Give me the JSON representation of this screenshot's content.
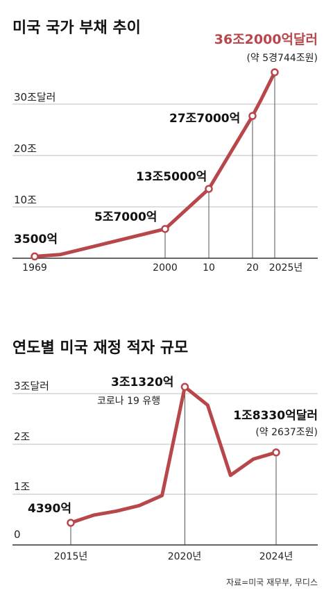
{
  "chart_data": [
    {
      "type": "line",
      "title": "미국 국가 부채 추이",
      "unit_note": "",
      "x_tick_labels": [
        "1969",
        "2000",
        "10",
        "20",
        "2025년"
      ],
      "y_tick_labels": [
        "10조",
        "20조",
        "30조달러"
      ],
      "ylim": [
        0,
        37
      ],
      "grid": true,
      "points": [
        {
          "x": 1969,
          "y": 0.35
        },
        {
          "x": 1975,
          "y": 0.7
        },
        {
          "x": 2000,
          "y": 5.7
        },
        {
          "x": 2010,
          "y": 13.5
        },
        {
          "x": 2020,
          "y": 27.7
        },
        {
          "x": 2022,
          "y": 31.0
        },
        {
          "x": 2025,
          "y": 36.2
        }
      ],
      "markers": [
        {
          "x": 1969,
          "y": 0.35,
          "label": "3500억"
        },
        {
          "x": 2000,
          "y": 5.7,
          "label": "5조7000억"
        },
        {
          "x": 2010,
          "y": 13.5,
          "label": "13조5000억"
        },
        {
          "x": 2020,
          "y": 27.7,
          "label": "27조7000억"
        },
        {
          "x": 2025,
          "y": 36.2,
          "label": "36조2000억달러",
          "sublabel": "(약 5경744조원)"
        }
      ]
    },
    {
      "type": "line",
      "title": "연도별 미국 재정 적자 규모",
      "x_tick_labels": [
        "2015년",
        "2020년",
        "2024년"
      ],
      "y_tick_labels": [
        "0",
        "1조",
        "2조",
        "3조달러"
      ],
      "ylim": [
        0,
        3.3
      ],
      "grid": true,
      "points": [
        {
          "x": 2015,
          "y": 0.439
        },
        {
          "x": 2016,
          "y": 0.59
        },
        {
          "x": 2017,
          "y": 0.67
        },
        {
          "x": 2018,
          "y": 0.78
        },
        {
          "x": 2019,
          "y": 0.98
        },
        {
          "x": 2020,
          "y": 3.132
        },
        {
          "x": 2021,
          "y": 2.77
        },
        {
          "x": 2022,
          "y": 1.38
        },
        {
          "x": 2023,
          "y": 1.7
        },
        {
          "x": 2024,
          "y": 1.833
        }
      ],
      "markers": [
        {
          "x": 2015,
          "y": 0.439,
          "label": "4390억"
        },
        {
          "x": 2020,
          "y": 3.132,
          "label": "3조1320억",
          "sublabel": "코로나 19 유행"
        },
        {
          "x": 2024,
          "y": 1.833,
          "label": "1조8330억달러",
          "sublabel": "(약 2637조원)"
        }
      ]
    }
  ],
  "source": "자료=미국 재무부, 무디스"
}
